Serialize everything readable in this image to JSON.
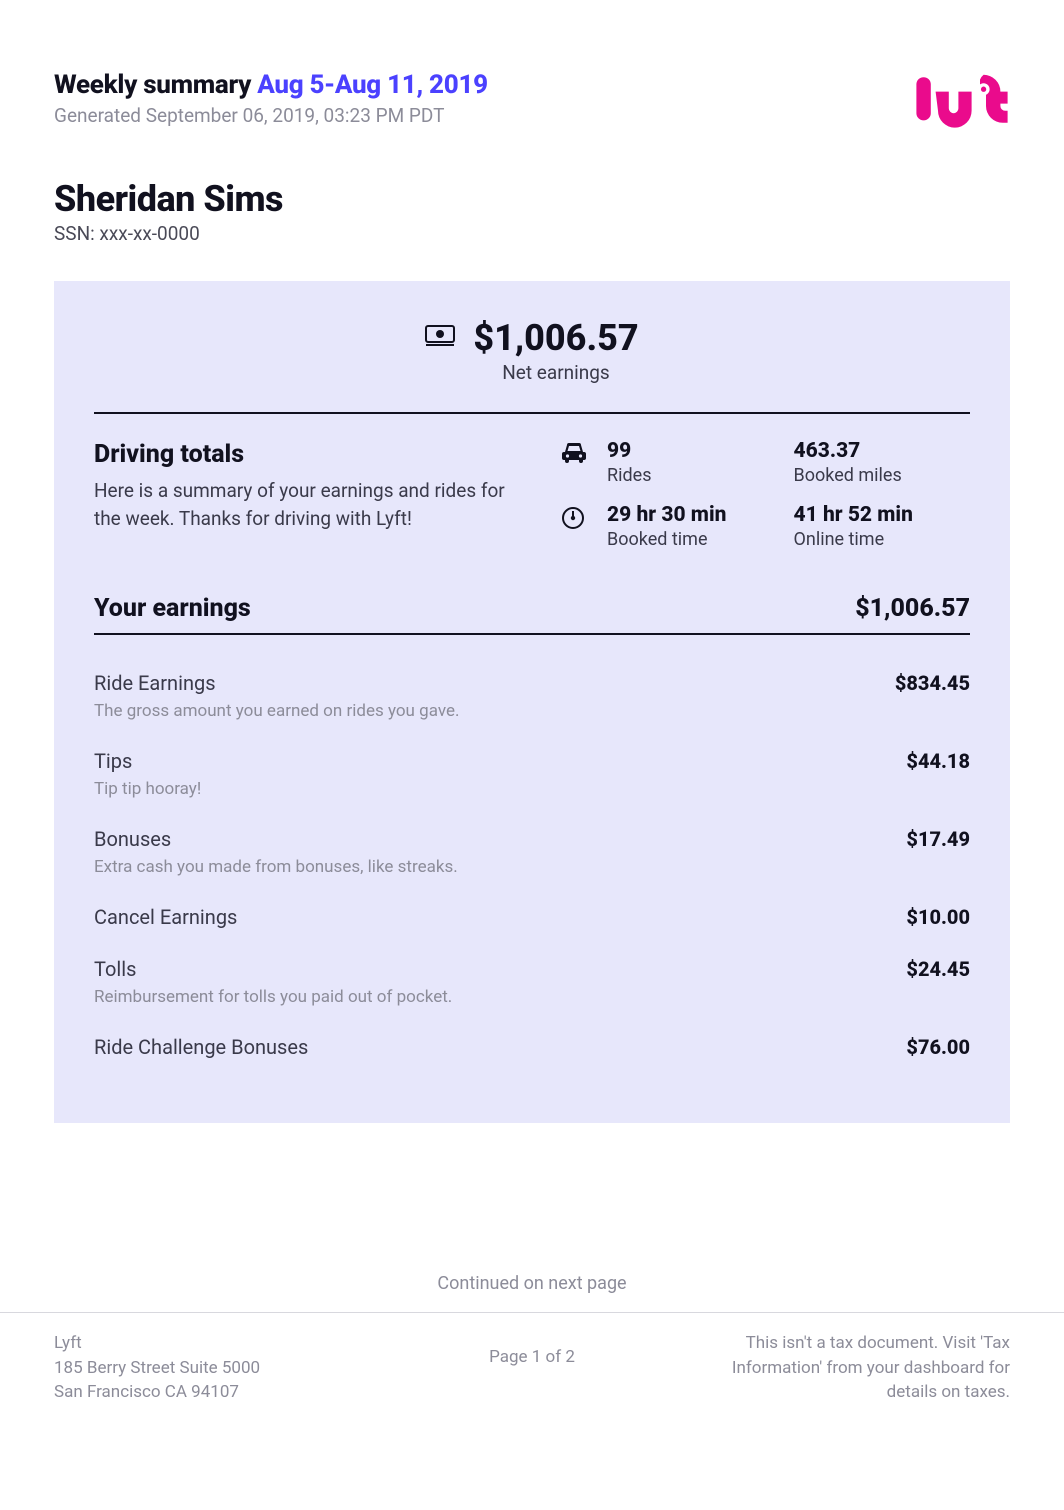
{
  "colors": {
    "accent_purple": "#4b41ff",
    "panel_bg": "#e7e7fb",
    "brand_pink": "#ea0b8c",
    "muted": "#8c8c99",
    "text": "#11111f"
  },
  "header": {
    "title_prefix": "Weekly summary ",
    "date_range": "Aug 5-Aug 11, 2019",
    "generated": "Generated September 06, 2019, 03:23 PM PDT"
  },
  "person": {
    "name": "Sheridan Sims",
    "ssn_line": "SSN: xxx-xx-0000"
  },
  "net": {
    "amount": "$1,006.57",
    "label": "Net earnings"
  },
  "driving_totals": {
    "heading": "Driving totals",
    "desc": "Here is a summary of your earnings and rides for the week. Thanks for driving with Lyft!",
    "rides_value": "99",
    "rides_label": "Rides",
    "booked_miles_value": "463.37",
    "booked_miles_label": "Booked miles",
    "booked_time_value": "29 hr 30 min",
    "booked_time_label": "Booked time",
    "online_time_value": "41 hr 52 min",
    "online_time_label": "Online time"
  },
  "earnings": {
    "heading": "Your earnings",
    "total": "$1,006.57",
    "items": [
      {
        "title": "Ride Earnings",
        "desc": "The gross amount you earned on rides you gave.",
        "amount": "$834.45"
      },
      {
        "title": "Tips",
        "desc": "Tip tip hooray!",
        "amount": "$44.18"
      },
      {
        "title": "Bonuses",
        "desc": "Extra cash you made from bonuses, like streaks.",
        "amount": "$17.49"
      },
      {
        "title": "Cancel Earnings",
        "desc": "",
        "amount": "$10.00"
      },
      {
        "title": "Tolls",
        "desc": "Reimbursement for tolls you paid out of pocket.",
        "amount": "$24.45"
      },
      {
        "title": "Ride Challenge Bonuses",
        "desc": "",
        "amount": "$76.00"
      }
    ]
  },
  "continued": "Continued on next page",
  "footer": {
    "company": "Lyft",
    "addr1": "185 Berry Street Suite 5000",
    "addr2": "San Francisco CA 94107",
    "page": "Page 1 of 2",
    "disclaimer": "This isn't a tax document. Visit 'Tax Information' from your dashboard for details on taxes."
  }
}
